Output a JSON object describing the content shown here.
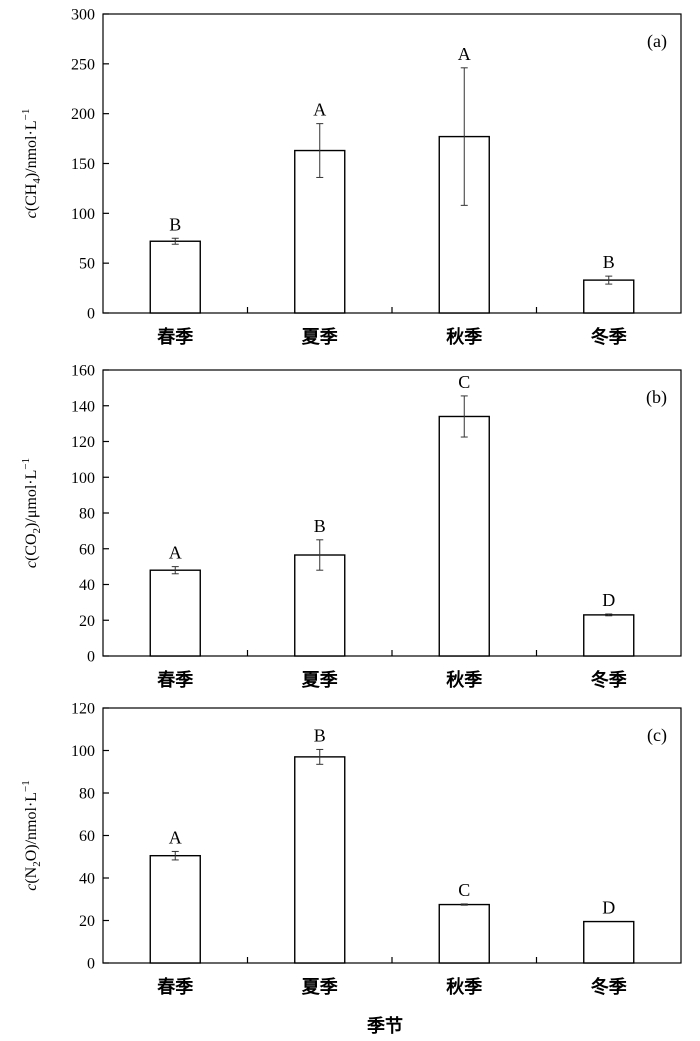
{
  "chart_data": [
    {
      "type": "bar",
      "panel_tag": "(a)",
      "ylabel": {
        "prefix": "c",
        "open": "(CH",
        "sub": "4",
        "close": ")/nmol·L",
        "sup": "−1"
      },
      "ylim": [
        0,
        300
      ],
      "yticks": [
        0,
        50,
        100,
        150,
        200,
        250,
        300
      ],
      "categories": [
        "春季",
        "夏季",
        "秋季",
        "冬季"
      ],
      "values": [
        72,
        163,
        177,
        33
      ],
      "errors": [
        3,
        27,
        69,
        4
      ],
      "significance": [
        "B",
        "A",
        "A",
        "B"
      ]
    },
    {
      "type": "bar",
      "panel_tag": "(b)",
      "ylabel": {
        "prefix": "c",
        "open": "(CO",
        "sub": "2",
        "close": ")/μmol·L",
        "sup": "−1"
      },
      "ylim": [
        0,
        160
      ],
      "yticks": [
        0,
        20,
        40,
        60,
        80,
        100,
        120,
        140,
        160
      ],
      "categories": [
        "春季",
        "夏季",
        "秋季",
        "冬季"
      ],
      "values": [
        48,
        56.5,
        134,
        23
      ],
      "errors": [
        2,
        8.5,
        11.5,
        0.5
      ],
      "significance": [
        "A",
        "B",
        "C",
        "D"
      ]
    },
    {
      "type": "bar",
      "panel_tag": "(c)",
      "ylabel": {
        "prefix": "c",
        "open": "(N",
        "sub": "2",
        "close": "O)/nmol·L",
        "sup": "−1"
      },
      "ylim": [
        0,
        120
      ],
      "yticks": [
        0,
        20,
        40,
        60,
        80,
        100,
        120
      ],
      "categories": [
        "春季",
        "夏季",
        "秋季",
        "冬季"
      ],
      "values": [
        50.5,
        97,
        27.5,
        19.5
      ],
      "errors": [
        2,
        3.5,
        0.3,
        0
      ],
      "significance": [
        "A",
        "B",
        "C",
        "D"
      ]
    }
  ],
  "xlabel": "季节"
}
